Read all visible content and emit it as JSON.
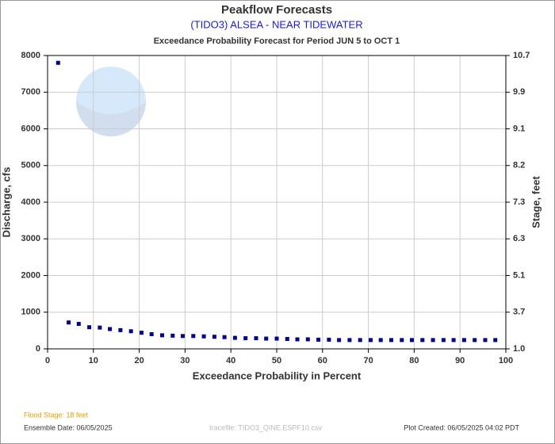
{
  "chart_data": {
    "type": "scatter",
    "title": "Peakflow Forecasts",
    "subtitle": "(TIDO3) ALSEA - NEAR TIDEWATER",
    "caption": "Exceedance Probability Forecast for Period JUN 5 to OCT 1",
    "x_label": "Exceedance Probability in Percent",
    "y_label": "Discharge, cfs",
    "y2_label": "Stage, feet",
    "xlim": [
      0,
      100
    ],
    "xticks": [
      0,
      10,
      20,
      30,
      40,
      50,
      60,
      70,
      80,
      90,
      100
    ],
    "ylim": [
      0,
      8000
    ],
    "yticks": [
      0,
      1000,
      2000,
      3000,
      4000,
      5000,
      6000,
      7000,
      8000
    ],
    "y2ticks": [
      {
        "value": 1,
        "label": "1.0"
      },
      3.7,
      5.1,
      6.3,
      7.3,
      8.2,
      9.1,
      9.9,
      10.7
    ],
    "grid": true,
    "series": [
      {
        "color": "#00008b",
        "x": [
          2.3,
          4.6,
          6.8,
          9.1,
          11.4,
          13.6,
          15.9,
          18.2,
          20.5,
          22.7,
          25,
          27.3,
          29.5,
          31.8,
          34.1,
          36.4,
          38.6,
          40.9,
          43.2,
          45.5,
          47.7,
          50,
          52.3,
          54.5,
          56.8,
          59.1,
          61.4,
          63.6,
          65.9,
          68.2,
          70.5,
          72.7,
          75,
          77.3,
          79.5,
          81.8,
          84.1,
          86.4,
          88.6,
          90.9,
          93.2,
          95.5,
          97.7
        ],
        "values": [
          7800,
          720,
          680,
          590,
          580,
          540,
          510,
          480,
          440,
          400,
          370,
          360,
          350,
          350,
          340,
          330,
          320,
          300,
          290,
          290,
          280,
          280,
          270,
          260,
          260,
          250,
          250,
          240,
          240,
          240,
          240,
          240,
          240,
          240,
          240,
          240,
          240,
          240,
          240,
          240,
          240,
          240,
          240
        ]
      }
    ],
    "footer": {
      "flood_stage": "Flood Stage: 18 feet",
      "ensemble_date": "Ensemble Date: 06/05/2025",
      "tracefile": "tracefile: TIDO3_QINE.ESPF10.csv",
      "created": "Plot Created: 06/05/2025 04:02 PDT"
    }
  }
}
